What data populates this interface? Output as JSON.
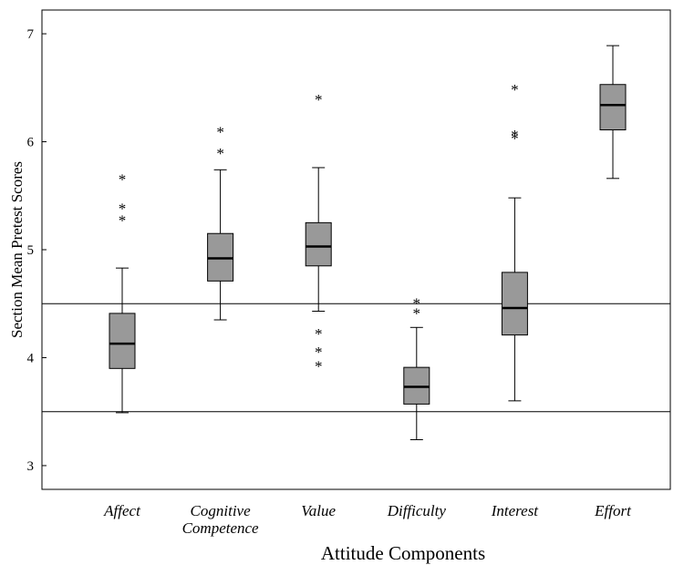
{
  "chart_data": {
    "type": "box",
    "xlabel": "Attitude Components",
    "ylabel": "Section Mean Pretest Scores",
    "ylim": [
      2.78,
      7.22
    ],
    "yticks": [
      3,
      4,
      5,
      6,
      7
    ],
    "reference_lines": [
      3.5,
      4.5
    ],
    "grid": false,
    "box_color": "#999999",
    "categories": [
      {
        "label_lines": [
          "Affect"
        ],
        "min": 3.49,
        "q1": 3.9,
        "median": 4.13,
        "q3": 4.41,
        "max": 4.83,
        "outliers": [
          5.3,
          5.41,
          5.68
        ]
      },
      {
        "label_lines": [
          "Cognitive",
          "Competence"
        ],
        "min": 4.35,
        "q1": 4.71,
        "median": 4.92,
        "q3": 5.15,
        "max": 5.74,
        "outliers": [
          5.92,
          6.12
        ]
      },
      {
        "label_lines": [
          "Value"
        ],
        "min": 4.43,
        "q1": 4.85,
        "median": 5.03,
        "q3": 5.25,
        "max": 5.76,
        "outliers": [
          3.95,
          4.08,
          4.25,
          6.42
        ]
      },
      {
        "label_lines": [
          "Difficulty"
        ],
        "min": 3.24,
        "q1": 3.57,
        "median": 3.73,
        "q3": 3.91,
        "max": 4.28,
        "outliers": [
          4.44,
          4.53
        ]
      },
      {
        "label_lines": [
          "Interest"
        ],
        "min": 3.6,
        "q1": 4.21,
        "median": 4.46,
        "q3": 4.79,
        "max": 5.48,
        "outliers": [
          6.06,
          6.09,
          6.51
        ]
      },
      {
        "label_lines": [
          "Effort"
        ],
        "min": 5.66,
        "q1": 6.11,
        "median": 6.34,
        "q3": 6.53,
        "max": 6.89,
        "outliers": []
      }
    ]
  }
}
